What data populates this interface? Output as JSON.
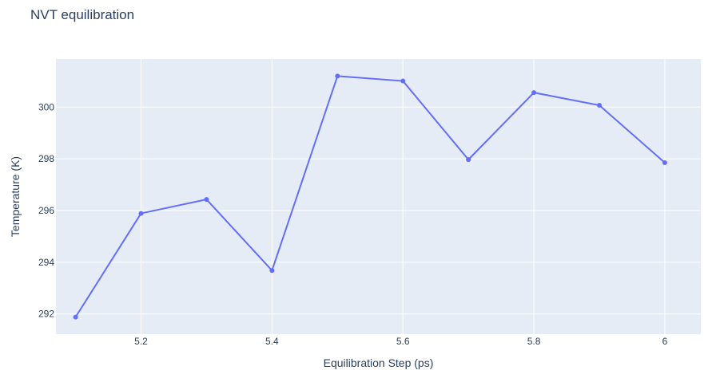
{
  "chart_data": {
    "type": "line",
    "title": "NVT equilibration",
    "xlabel": "Equilibration Step (ps)",
    "ylabel": "Temperature (K)",
    "x": [
      5.1,
      5.2,
      5.3,
      5.4,
      5.5,
      5.6,
      5.7,
      5.8,
      5.9,
      6.0
    ],
    "series": [
      {
        "name": "",
        "values": [
          291.88,
          295.89,
          296.43,
          293.68,
          301.2,
          301.01,
          297.97,
          300.56,
          300.07,
          297.85
        ]
      }
    ],
    "xlim": [
      5.07,
      6.055
    ],
    "ylim": [
      291.22,
      301.86
    ],
    "x_ticks": [
      5.2,
      5.4,
      5.6,
      5.8,
      6.0
    ],
    "x_tick_labels": [
      "5.2",
      "5.4",
      "5.6",
      "5.8",
      "6"
    ],
    "y_ticks": [
      292,
      294,
      296,
      298,
      300
    ],
    "y_tick_labels": [
      "292",
      "294",
      "296",
      "298",
      "300"
    ],
    "grid": true,
    "legend": "none",
    "colors": {
      "line": "#636efa",
      "plot_background": "#e5ecf6",
      "grid": "#ffffff",
      "text": "#2a3f5f"
    }
  }
}
